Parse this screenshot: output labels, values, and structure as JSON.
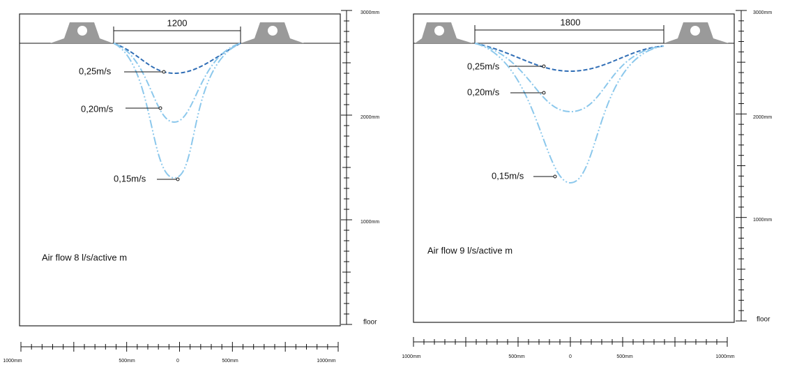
{
  "panels": [
    {
      "dimension": "1200",
      "velocity_labels": [
        "0,25m/s",
        "0,20m/s",
        "0,15m/s"
      ],
      "airflow": "Air flow 8 l/s/active m",
      "vertical_scale": [
        "3000mm",
        "2000mm",
        "1000mm",
        "floor"
      ],
      "horizontal_scale": [
        "1000mm",
        "500mm",
        "0",
        "500mm",
        "1000mm"
      ]
    },
    {
      "dimension": "1800",
      "velocity_labels": [
        "0,25m/s",
        "0,20m/s",
        "0,15m/s"
      ],
      "airflow": "Air flow 9 l/s/active m",
      "vertical_scale": [
        "3000mm",
        "2000mm",
        "1000mm",
        "floor"
      ],
      "horizontal_scale": [
        "1000mm",
        "500mm",
        "0",
        "500mm",
        "1000mm"
      ]
    }
  ]
}
